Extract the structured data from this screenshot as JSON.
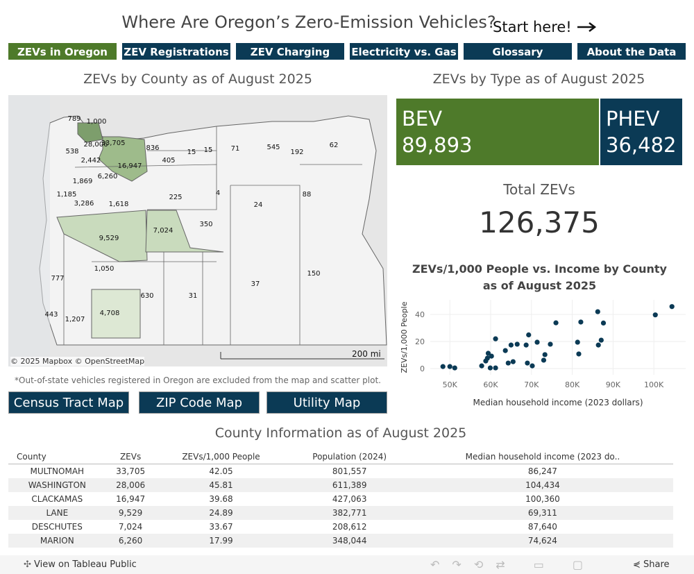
{
  "header": {
    "title": "Where Are Oregon’s Zero-Emission Vehicles?",
    "start_here": "Start here!"
  },
  "tabs": [
    "ZEVs in Oregon",
    "ZEV Registrations",
    "ZEV Charging",
    "Electricity vs. Gas",
    "Glossary",
    "About the Data"
  ],
  "map": {
    "title": "ZEVs by County as of August 2025",
    "county_labels": [
      "789",
      "1,000",
      "28,006",
      "33,705",
      "836",
      "15",
      "15",
      "71",
      "545",
      "192",
      "62",
      "538",
      "2,442",
      "16,947",
      "405",
      "1,869",
      "6,260",
      "4",
      "225",
      "88",
      "1,185",
      "3,286",
      "1,618",
      "24",
      "350",
      "7,024",
      "9,529",
      "1,050",
      "150",
      "777",
      "37",
      "630",
      "31",
      "4,708",
      "443",
      "1,207"
    ],
    "attribution": "© 2025 Mapbox © OpenStreetMap",
    "scale": "200 mi",
    "footnote": "*Out-of-state vehicles registered in Oregon are excluded from the map and scatter plot."
  },
  "buttons": [
    "Census Tract Map",
    "ZIP Code Map",
    "Utility Map"
  ],
  "type_panel": {
    "title": "ZEVs by Type as of August 2025",
    "tiles": [
      {
        "label": "BEV",
        "value": "89,893"
      },
      {
        "label": "PHEV",
        "value": "36,482"
      }
    ],
    "total_label": "Total ZEVs",
    "total": "126,375"
  },
  "scatter": {
    "type": "scatter",
    "title": "ZEVs/1,000 People vs. Income by County as of August 2025",
    "x_label": "Median household income (2023 dollars)",
    "y_label": "ZEVs/1,000 People",
    "color": "#0b3a55",
    "grid": true,
    "x": [
      48300,
      50000,
      51200,
      57800,
      58800,
      59400,
      60200,
      59200,
      59900,
      61200,
      61200,
      63600,
      64300,
      65000,
      65500,
      66500,
      68700,
      69000,
      69311,
      70200,
      71400,
      73000,
      73300,
      74624,
      76000,
      81300,
      81600,
      82100,
      86247,
      86400,
      87100,
      87640,
      100360,
      104434
    ],
    "values": [
      1.5,
      1.5,
      0.5,
      2,
      5.6,
      11.3,
      9.2,
      7.7,
      0.5,
      0.5,
      22,
      13.3,
      4.1,
      17.4,
      5.1,
      18,
      17.4,
      4.1,
      24.89,
      2,
      19.5,
      6.2,
      10.3,
      17.99,
      33.8,
      19.5,
      10.8,
      34.4,
      42.05,
      17.4,
      21,
      33.67,
      39.68,
      45.81
    ],
    "xlim": [
      45200,
      107800
    ],
    "ylim": [
      -4.6,
      50.8
    ],
    "xticks": [
      {
        "value": 50000,
        "label": "50K"
      },
      {
        "value": 60000,
        "label": "60K"
      },
      {
        "value": 70000,
        "label": "70K"
      },
      {
        "value": 80000,
        "label": "80K"
      },
      {
        "value": 90000,
        "label": "90K"
      },
      {
        "value": 100000,
        "label": "100K"
      }
    ],
    "yticks": [
      0,
      20,
      40
    ]
  },
  "table": {
    "title": "County Information as of August 2025",
    "columns": [
      "County",
      "ZEVs",
      "ZEVs/1,000 People",
      "Population (2024)",
      "Median household income (2023 do.."
    ],
    "rows": [
      [
        "MULTNOMAH",
        "33,705",
        "42.05",
        "801,557",
        "86,247"
      ],
      [
        "WASHINGTON",
        "28,006",
        "45.81",
        "611,389",
        "104,434"
      ],
      [
        "CLACKAMAS",
        "16,947",
        "39.68",
        "427,063",
        "100,360"
      ],
      [
        "LANE",
        "9,529",
        "24.89",
        "382,771",
        "69,311"
      ],
      [
        "DESCHUTES",
        "7,024",
        "33.67",
        "208,612",
        "87,640"
      ],
      [
        "MARION",
        "6,260",
        "17.99",
        "348,044",
        "74,624"
      ]
    ]
  },
  "footer": {
    "view": "View on Tableau Public",
    "share": "Share"
  }
}
